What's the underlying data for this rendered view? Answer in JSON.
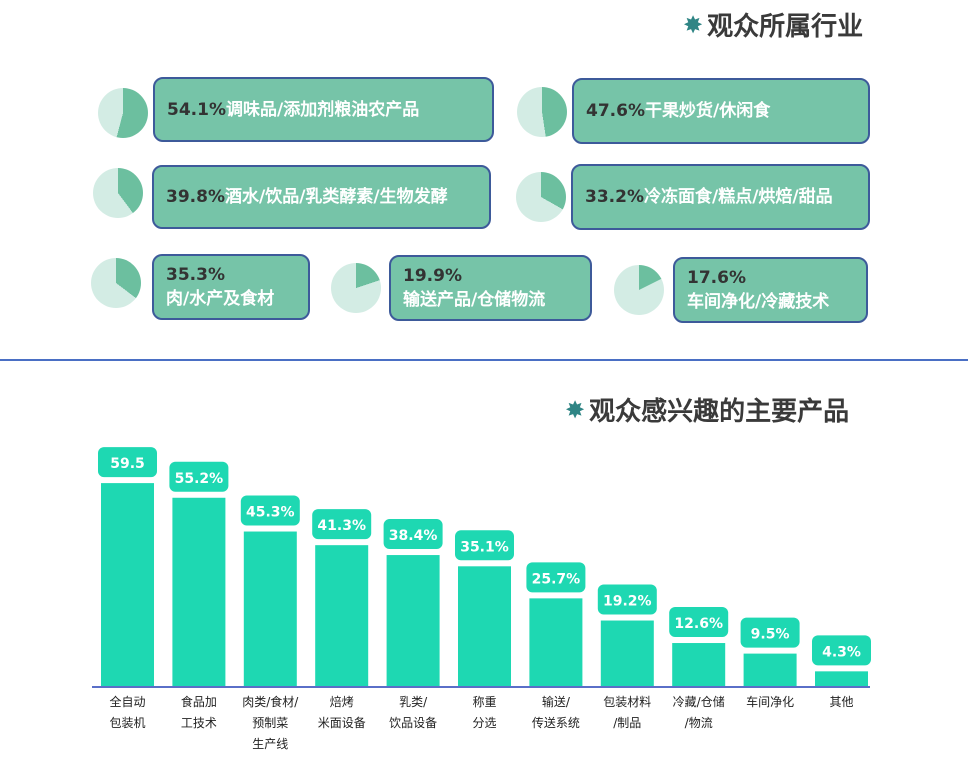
{
  "industry": {
    "title": "观众所属行业",
    "title_icon": "star-icon",
    "items": [
      {
        "pct": "54.1%",
        "label": "调味品/添加剂粮油农产品",
        "value": 54.1
      },
      {
        "pct": "47.6%",
        "label": "干果炒货/休闲食",
        "value": 47.6
      },
      {
        "pct": "39.8%",
        "label": "酒水/饮品/乳类酵素/生物发酵",
        "value": 39.8
      },
      {
        "pct": "33.2%",
        "label": "冷冻面食/糕点/烘焙/甜品",
        "value": 33.2
      },
      {
        "pct": "35.3%",
        "label": "肉/水产及食材",
        "value": 35.3
      },
      {
        "pct": "19.9%",
        "label": "输送产品/仓储物流",
        "value": 19.9
      },
      {
        "pct": "17.6%",
        "label": "车间净化/冷藏技术",
        "value": 17.6
      }
    ],
    "colors": {
      "pie_fill": "#6cbf9f",
      "pie_bg": "#d3ece4",
      "box": "#76c4a8",
      "border": "#3d5a9a"
    }
  },
  "products": {
    "title": "观众感兴趣的主要产品",
    "title_icon": "star-icon"
  },
  "chart_data": {
    "type": "bar",
    "categories": [
      [
        "全自动",
        "包装机"
      ],
      [
        "食品加",
        "工技术"
      ],
      [
        "肉类/食材/",
        "预制菜",
        "生产线"
      ],
      [
        "焙烤",
        "米面设备"
      ],
      [
        "乳类/",
        "饮品设备"
      ],
      [
        "称重",
        "分选"
      ],
      [
        "输送/",
        "传送系统"
      ],
      [
        "包装材料",
        "/制品"
      ],
      [
        "冷藏/仓储",
        "/物流"
      ],
      [
        "车间净化"
      ],
      [
        "其他"
      ]
    ],
    "values": [
      59.5,
      55.2,
      45.3,
      41.3,
      38.4,
      35.1,
      25.7,
      19.2,
      12.6,
      9.5,
      4.3
    ],
    "data_labels": [
      "59.5",
      "55.2%",
      "45.3%",
      "41.3%",
      "38.4%",
      "35.1%",
      "25.7%",
      "19.2%",
      "12.6%",
      "9.5%",
      "4.3%"
    ],
    "bar_color": "#1ed8b2",
    "axis_color": "#5a6fc8",
    "ylim": [
      0,
      60
    ],
    "grid": false
  }
}
